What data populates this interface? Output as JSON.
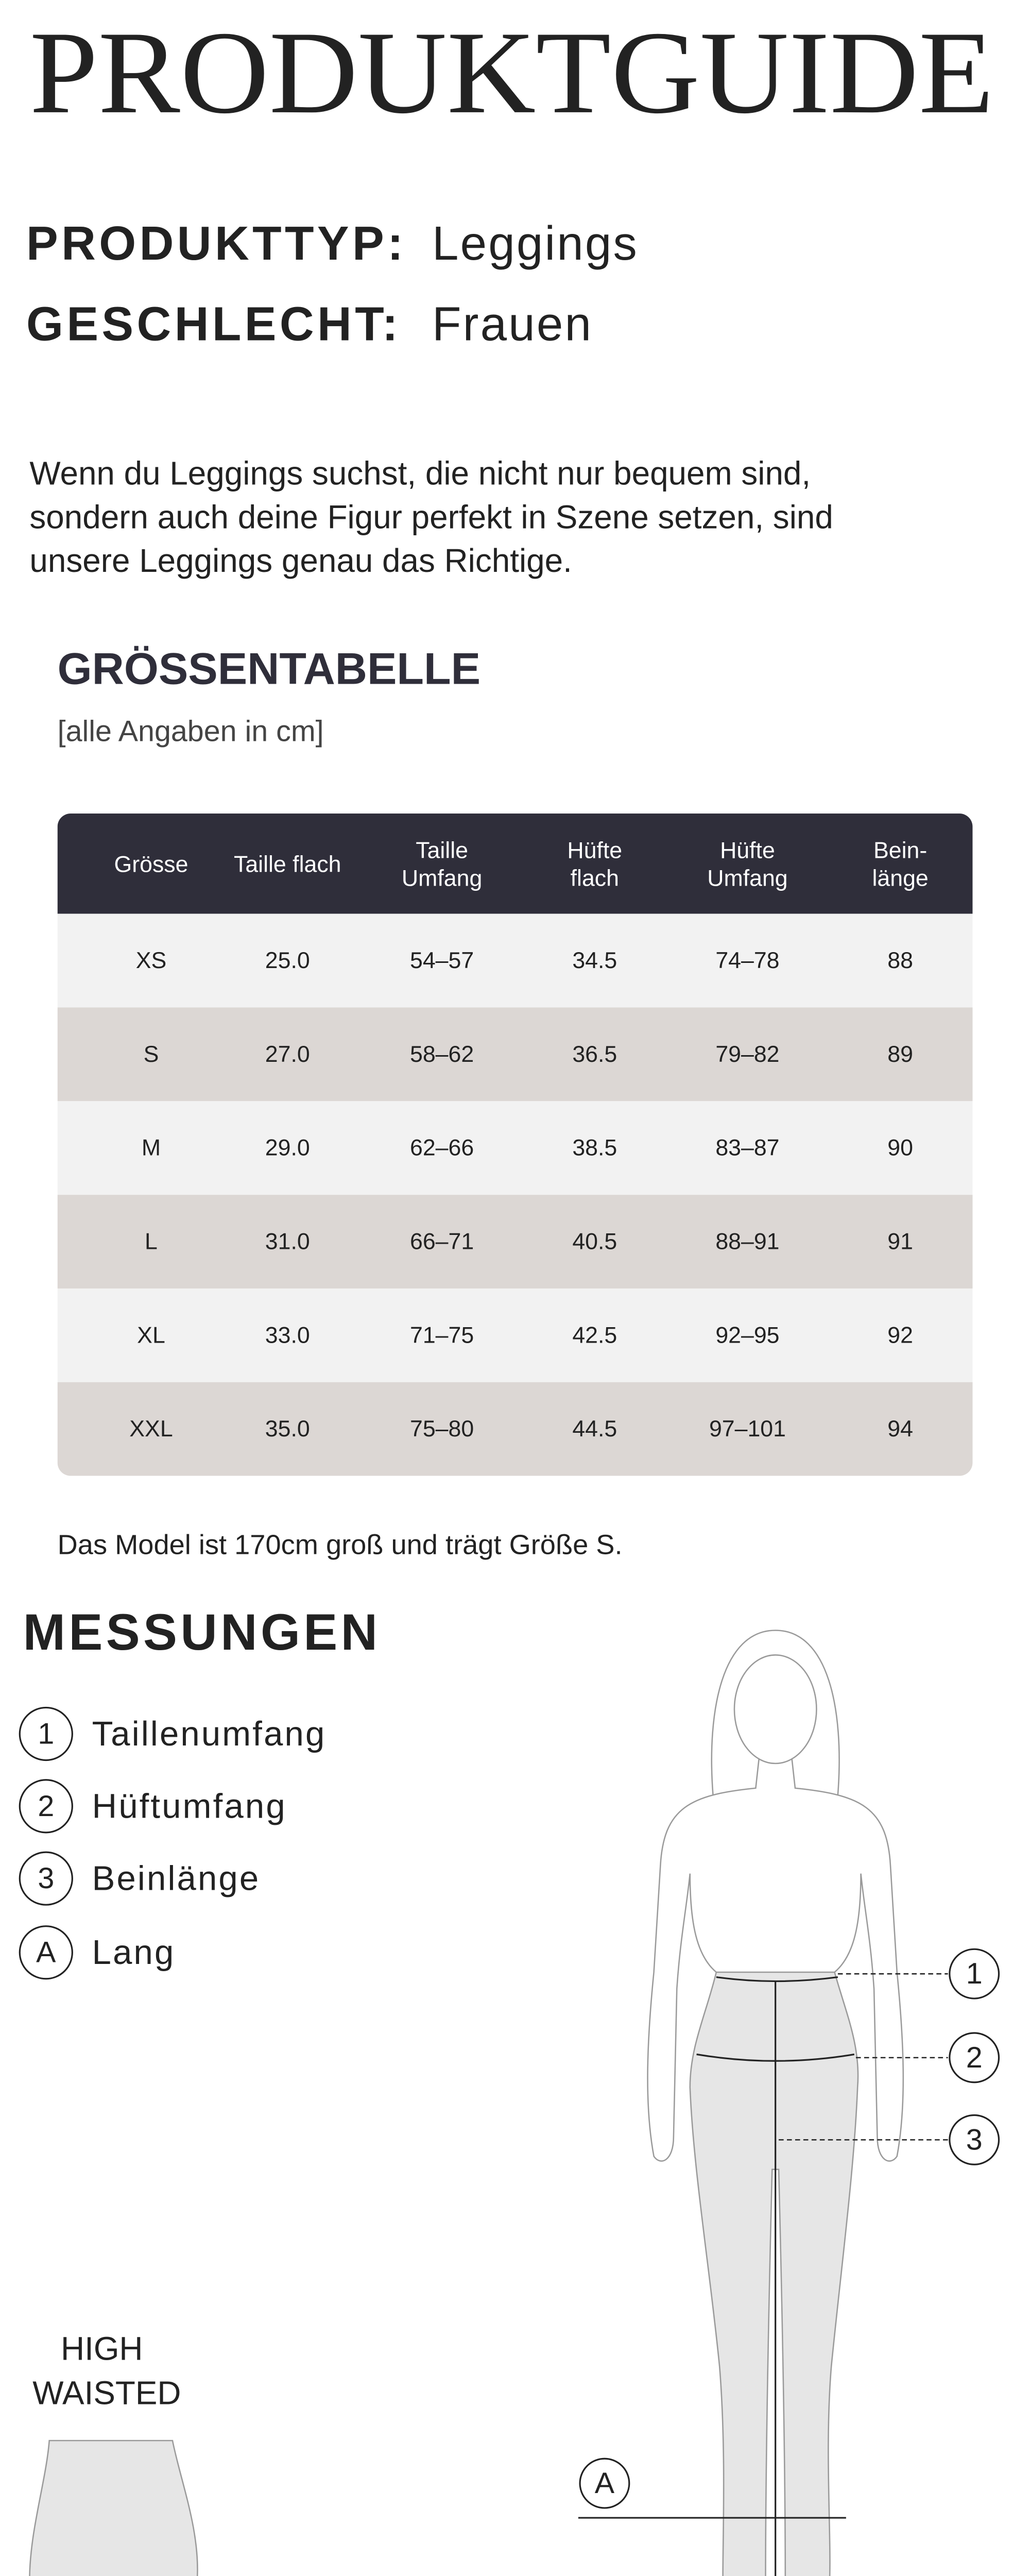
{
  "header": {
    "title": "PRODUKTGUIDE"
  },
  "product": {
    "type_label": "PRODUKTTYP:",
    "type": "Leggings",
    "gender_label": "GESCHLECHT:",
    "gender": "Frauen"
  },
  "description": {
    "lines": [
      "Wenn du Leggings suchst, die nicht nur bequem sind,",
      "sondern auch deine Figur perfekt in Szene setzen, sind",
      "unsere Leggings genau das Richtige."
    ]
  },
  "size_table": {
    "title": "GRÖSSENTABELLE",
    "subtitle": "[alle Angaben in cm]",
    "columns": [
      [
        "Grösse"
      ],
      [
        "Taille flach"
      ],
      [
        "Taille",
        "Umfang"
      ],
      [
        "Hüfte",
        "flach"
      ],
      [
        "Hüfte",
        "Umfang"
      ],
      [
        "Bein-",
        "länge"
      ]
    ],
    "rows": [
      [
        "XS",
        "25.0",
        "54–57",
        "34.5",
        "74–78",
        "88"
      ],
      [
        "S",
        "27.0",
        "58–62",
        "36.5",
        "79–82",
        "89"
      ],
      [
        "M",
        "29.0",
        "62–66",
        "38.5",
        "83–87",
        "90"
      ],
      [
        "L",
        "31.0",
        "66–71",
        "40.5",
        "88–91",
        "91"
      ],
      [
        "XL",
        "33.0",
        "71–75",
        "42.5",
        "92–95",
        "92"
      ],
      [
        "XXL",
        "35.0",
        "75–80",
        "44.5",
        "97–101",
        "94"
      ]
    ]
  },
  "note": "Das Model ist 170cm groß und trägt Größe S.",
  "measurements": {
    "title": "MESSUNGEN",
    "items": [
      {
        "marker": "1",
        "label": "Taillenumfang"
      },
      {
        "marker": "2",
        "label": "Hüftumfang"
      },
      {
        "marker": "3",
        "label": "Beinlänge"
      },
      {
        "marker": "A",
        "label": "Lang"
      }
    ]
  },
  "style": {
    "label": [
      "HIGH",
      "WAISTED"
    ]
  }
}
